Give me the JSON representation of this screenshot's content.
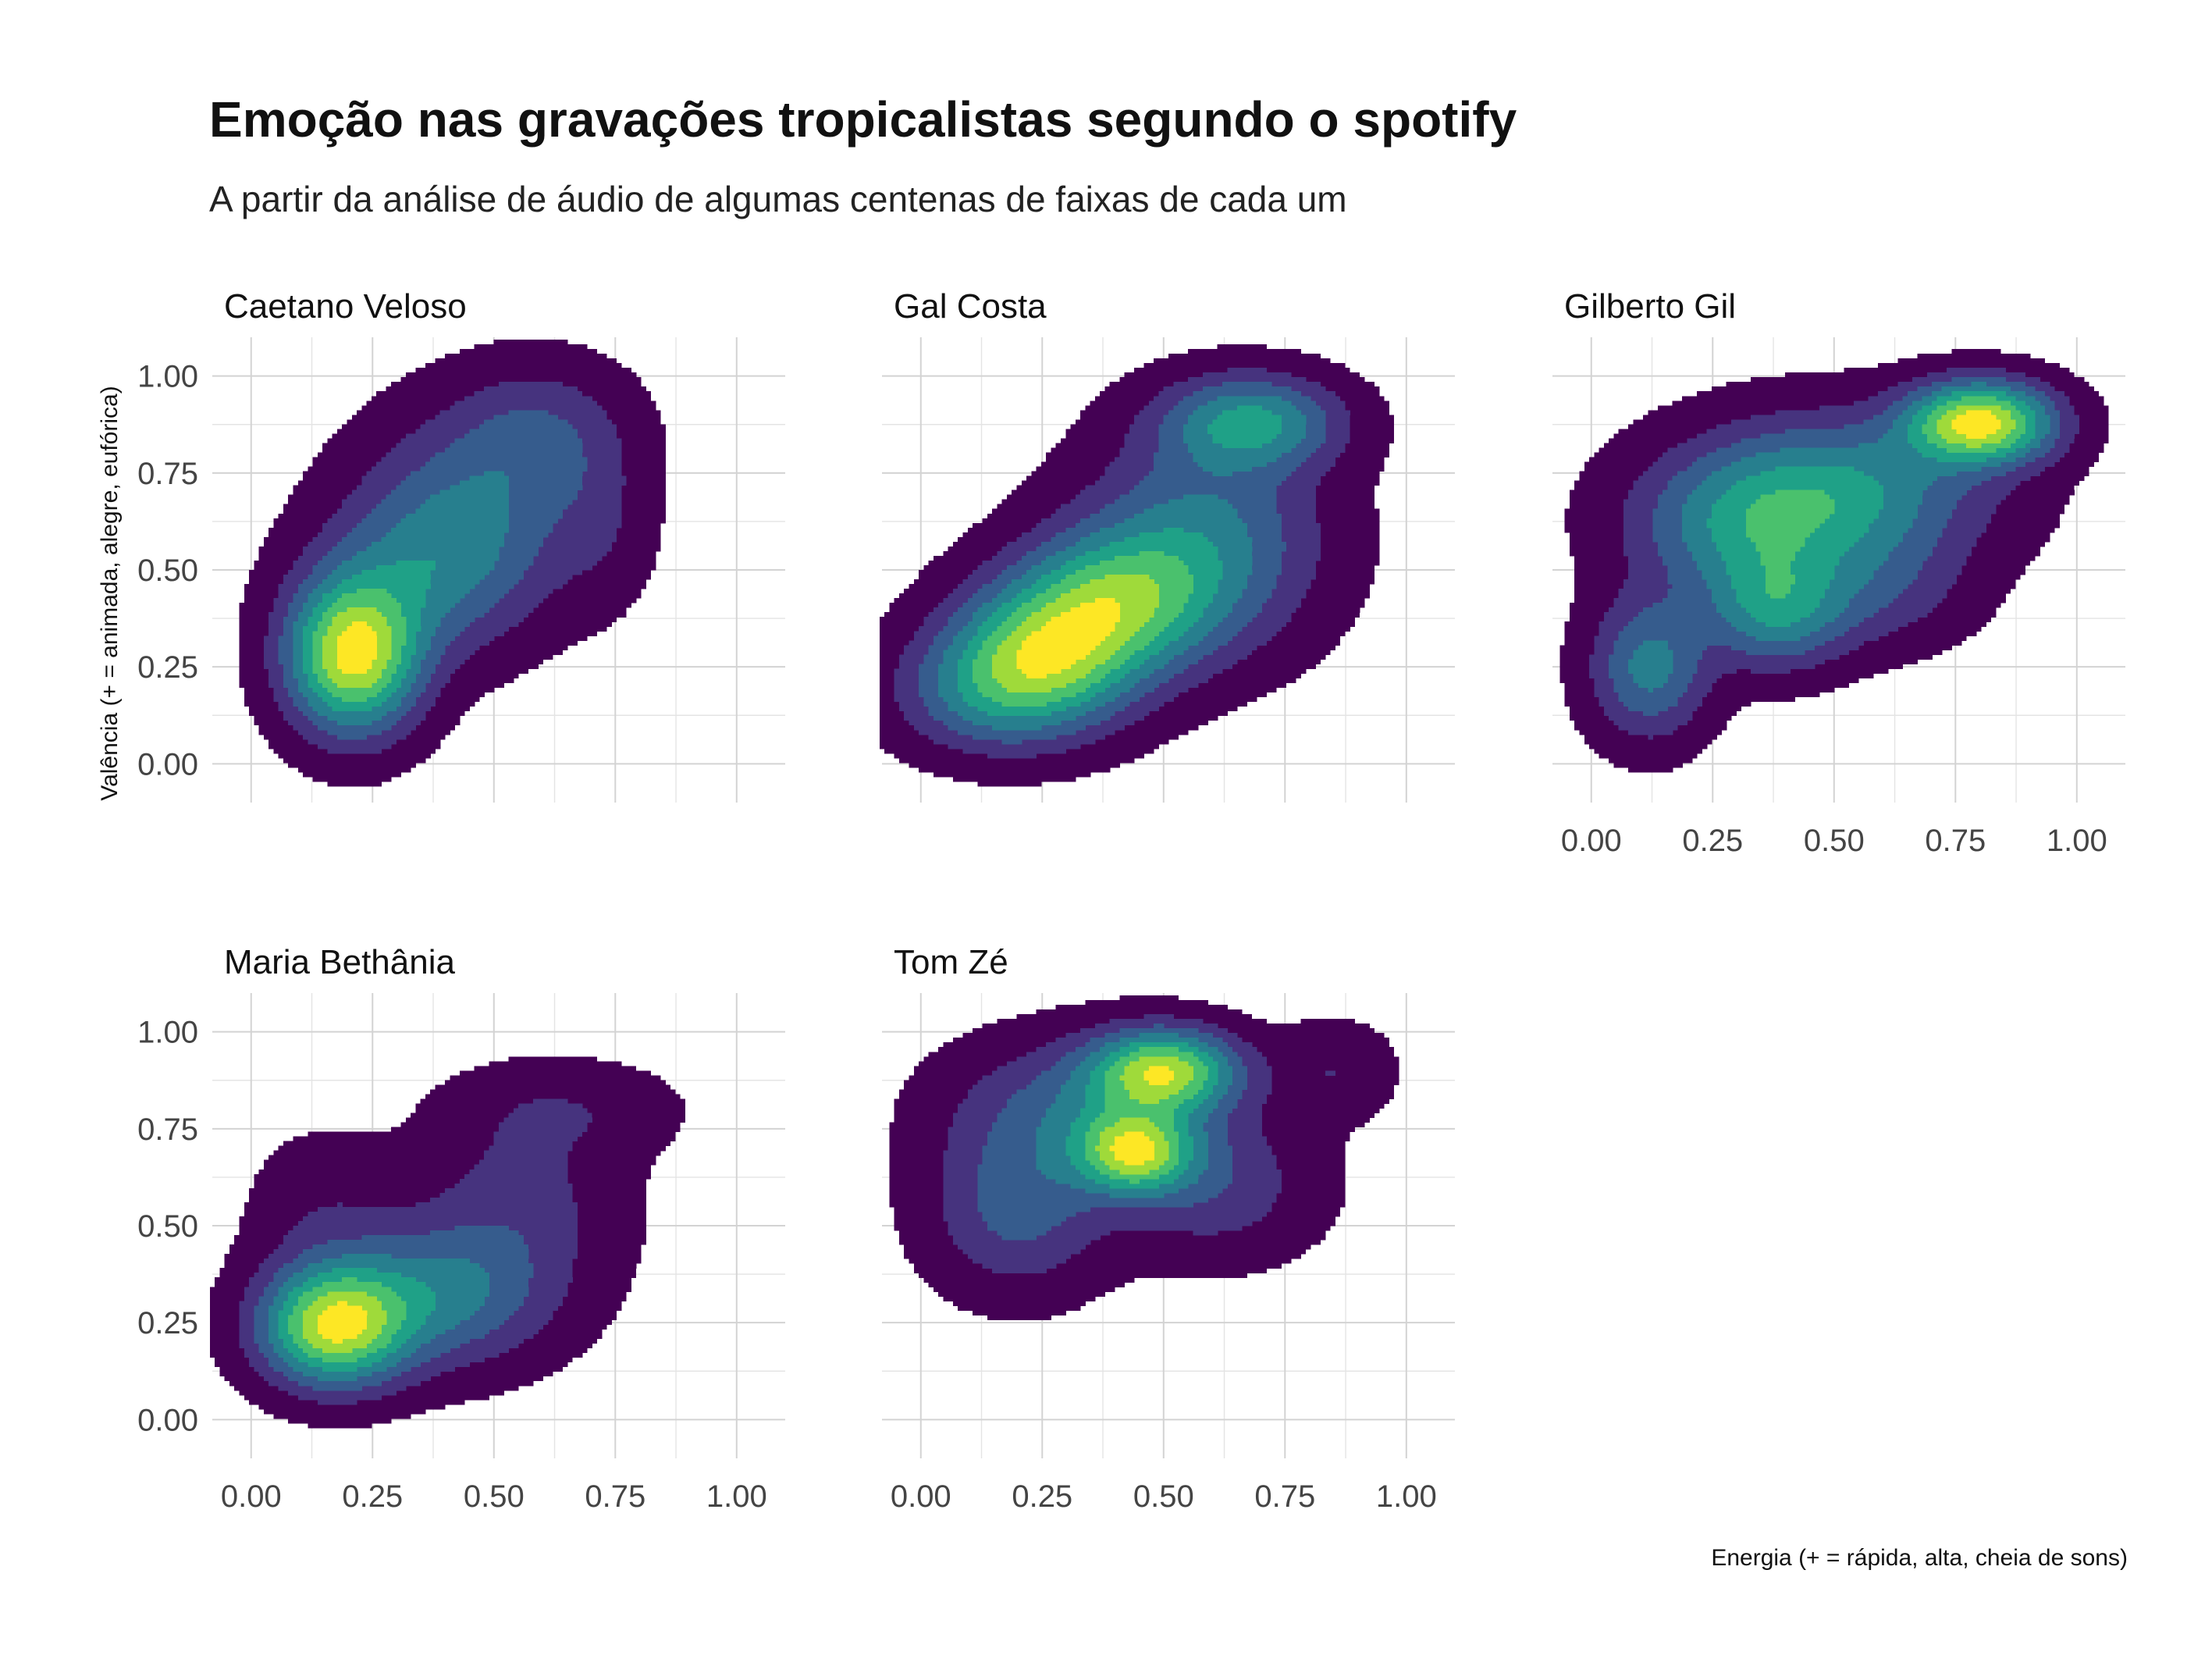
{
  "chart": {
    "title": "Emoção nas gravações tropicalistas segundo o spotify",
    "subtitle": "A partir da análise de áudio de algumas centenas de faixas de cada um",
    "xlabel": "Energia (+ = rápida, alta, cheia de sons)",
    "ylabel": "Valência (+ = animada, alegre, eufórica)"
  },
  "colors": {
    "viridis_levels": [
      "#440154",
      "#46337E",
      "#365C8D",
      "#277F8E",
      "#1FA187",
      "#4AC16D",
      "#9FDA3A",
      "#FDE725"
    ],
    "grid": "#d3d3d3"
  },
  "chart_data": {
    "type": "density-contour-facets",
    "x_range": [
      -0.08,
      1.1
    ],
    "y_range": [
      -0.1,
      1.1
    ],
    "x_ticks": [
      0,
      0.25,
      0.5,
      0.75,
      1
    ],
    "x_tick_labels": [
      "0.00",
      "0.25",
      "0.50",
      "0.75",
      "1.00"
    ],
    "y_ticks": [
      0,
      0.25,
      0.5,
      0.75,
      1
    ],
    "y_tick_labels": [
      "0.00",
      "0.25",
      "0.50",
      "0.75",
      "1.00"
    ],
    "panels": [
      {
        "name": "Caetano Veloso",
        "peaks": [
          {
            "x": 0.21,
            "y": 0.28,
            "sx": 0.09,
            "sy": 0.13,
            "w": 1.0
          },
          {
            "x": 0.45,
            "y": 0.65,
            "sx": 0.15,
            "sy": 0.17,
            "w": 0.32
          },
          {
            "x": 0.6,
            "y": 0.85,
            "sx": 0.12,
            "sy": 0.12,
            "w": 0.22
          },
          {
            "x": 0.35,
            "y": 0.48,
            "sx": 0.14,
            "sy": 0.14,
            "w": 0.3
          },
          {
            "x": 0.72,
            "y": 0.62,
            "sx": 0.07,
            "sy": 0.14,
            "w": 0.1
          }
        ]
      },
      {
        "name": "Gal Costa",
        "peaks": [
          {
            "x": 0.25,
            "y": 0.27,
            "sx": 0.13,
            "sy": 0.12,
            "w": 0.55
          },
          {
            "x": 0.4,
            "y": 0.42,
            "sx": 0.14,
            "sy": 0.12,
            "w": 0.45
          },
          {
            "x": 0.68,
            "y": 0.88,
            "sx": 0.12,
            "sy": 0.08,
            "w": 0.38
          },
          {
            "x": 0.58,
            "y": 0.58,
            "sx": 0.16,
            "sy": 0.18,
            "w": 0.3
          },
          {
            "x": 0.12,
            "y": 0.18,
            "sx": 0.12,
            "sy": 0.1,
            "w": 0.2
          }
        ]
      },
      {
        "name": "Gilberto Gil",
        "peaks": [
          {
            "x": 0.8,
            "y": 0.88,
            "sx": 0.1,
            "sy": 0.07,
            "w": 0.65
          },
          {
            "x": 0.5,
            "y": 0.7,
            "sx": 0.2,
            "sy": 0.13,
            "w": 0.35
          },
          {
            "x": 0.38,
            "y": 0.4,
            "sx": 0.1,
            "sy": 0.1,
            "w": 0.32
          },
          {
            "x": 0.12,
            "y": 0.25,
            "sx": 0.08,
            "sy": 0.12,
            "w": 0.28
          },
          {
            "x": 0.3,
            "y": 0.6,
            "sx": 0.15,
            "sy": 0.12,
            "w": 0.22
          },
          {
            "x": 0.6,
            "y": 0.45,
            "sx": 0.12,
            "sy": 0.1,
            "w": 0.12
          }
        ]
      },
      {
        "name": "Maria Bethânia",
        "peaks": [
          {
            "x": 0.17,
            "y": 0.24,
            "sx": 0.1,
            "sy": 0.1,
            "w": 1.0
          },
          {
            "x": 0.38,
            "y": 0.32,
            "sx": 0.15,
            "sy": 0.12,
            "w": 0.45
          },
          {
            "x": 0.55,
            "y": 0.55,
            "sx": 0.14,
            "sy": 0.16,
            "w": 0.2
          },
          {
            "x": 0.15,
            "y": 0.52,
            "sx": 0.1,
            "sy": 0.14,
            "w": 0.12
          },
          {
            "x": 0.65,
            "y": 0.8,
            "sx": 0.15,
            "sy": 0.08,
            "w": 0.12
          }
        ]
      },
      {
        "name": "Tom Zé",
        "peaks": [
          {
            "x": 0.5,
            "y": 0.9,
            "sx": 0.1,
            "sy": 0.07,
            "w": 0.75
          },
          {
            "x": 0.44,
            "y": 0.69,
            "sx": 0.08,
            "sy": 0.07,
            "w": 0.7
          },
          {
            "x": 0.35,
            "y": 0.8,
            "sx": 0.18,
            "sy": 0.12,
            "w": 0.3
          },
          {
            "x": 0.2,
            "y": 0.55,
            "sx": 0.12,
            "sy": 0.14,
            "w": 0.28
          },
          {
            "x": 0.6,
            "y": 0.6,
            "sx": 0.14,
            "sy": 0.12,
            "w": 0.2
          },
          {
            "x": 0.85,
            "y": 0.9,
            "sx": 0.08,
            "sy": 0.08,
            "w": 0.12
          }
        ]
      }
    ]
  }
}
